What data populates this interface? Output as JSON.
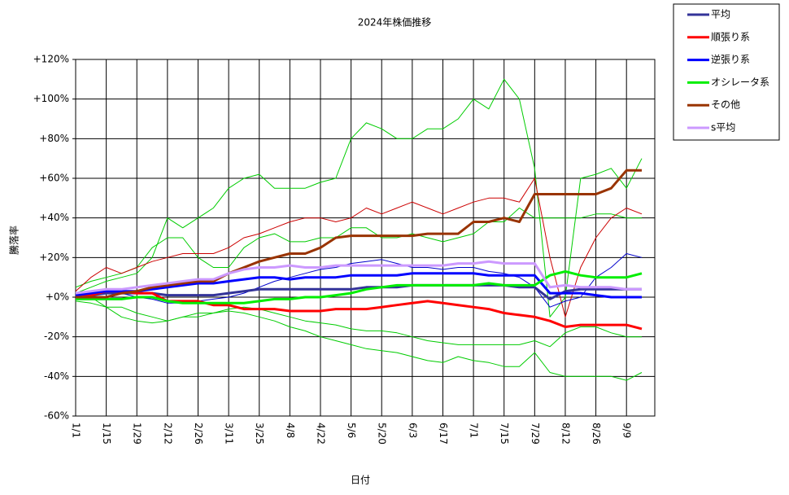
{
  "chart_data": {
    "type": "line",
    "title": "2024年株価推移",
    "x_label": "日付",
    "y_label": "騰落率",
    "categories": [
      "1/1",
      null,
      "1/15",
      null,
      "1/29",
      null,
      "2/12",
      null,
      "2/26",
      null,
      "3/11",
      null,
      "3/25",
      null,
      "4/8",
      null,
      "4/22",
      null,
      "5/6",
      null,
      "5/20",
      null,
      "6/3",
      null,
      "6/17",
      null,
      "7/1",
      null,
      "7/15",
      null,
      "7/29",
      null,
      "8/12",
      null,
      "8/26",
      null,
      "9/9",
      null
    ],
    "ylim": [
      -60,
      120
    ],
    "yticks": [
      {
        "value": -60,
        "label": "-60%"
      },
      {
        "value": -40,
        "label": "-40%"
      },
      {
        "value": -20,
        "label": "-20%"
      },
      {
        "value": 0,
        "label": "+0%"
      },
      {
        "value": 20,
        "label": "+20%"
      },
      {
        "value": 40,
        "label": "+40%"
      },
      {
        "value": 60,
        "label": "+60%"
      },
      {
        "value": 80,
        "label": "+80%"
      },
      {
        "value": 100,
        "label": "+100%"
      },
      {
        "value": 120,
        "label": "+120%"
      }
    ],
    "grid": true,
    "legend": "outside-top-right",
    "series": [
      {
        "color": "#00cc00",
        "values": [
          2,
          5,
          8,
          10,
          12,
          20,
          40,
          35,
          40,
          45,
          55,
          60,
          62,
          55,
          55,
          55,
          58,
          60,
          80,
          88,
          85,
          80,
          80,
          85,
          85,
          90,
          100,
          95,
          110,
          100,
          65,
          -10,
          0,
          60,
          62,
          65,
          55,
          70
        ]
      },
      {
        "color": "#00cc00",
        "values": [
          0,
          0,
          -5,
          -10,
          -12,
          -13,
          -12,
          -10,
          -10,
          -8,
          -7,
          -8,
          -10,
          -12,
          -15,
          -17,
          -20,
          -22,
          -24,
          -26,
          -27,
          -28,
          -30,
          -32,
          -33,
          -30,
          -32,
          -33,
          -35,
          -35,
          -28,
          -38,
          -40,
          -40,
          -40,
          -40,
          -42,
          -38
        ]
      },
      {
        "color": "#00cc00",
        "values": [
          5,
          8,
          10,
          12,
          15,
          25,
          30,
          30,
          20,
          15,
          15,
          25,
          30,
          32,
          28,
          28,
          30,
          30,
          35,
          35,
          30,
          30,
          32,
          30,
          28,
          30,
          32,
          38,
          38,
          45,
          40,
          40,
          40,
          40,
          42,
          42,
          40,
          40
        ]
      },
      {
        "color": "#00cc00",
        "values": [
          -2,
          -3,
          -5,
          -5,
          -8,
          -10,
          -12,
          -10,
          -8,
          -8,
          -6,
          -5,
          -6,
          -8,
          -10,
          -12,
          -13,
          -14,
          -16,
          -17,
          -17,
          -18,
          -20,
          -22,
          -23,
          -24,
          -24,
          -24,
          -24,
          -24,
          -22,
          -25,
          -18,
          -15,
          -15,
          -18,
          -20,
          -20
        ]
      },
      {
        "color": "#cc0000",
        "values": [
          3,
          10,
          15,
          12,
          15,
          18,
          20,
          22,
          22,
          22,
          25,
          30,
          32,
          35,
          38,
          40,
          40,
          38,
          40,
          45,
          42,
          45,
          48,
          45,
          42,
          45,
          48,
          50,
          50,
          48,
          60,
          20,
          -10,
          15,
          30,
          40,
          45,
          42
        ]
      },
      {
        "color": "#0000cc",
        "values": [
          0,
          2,
          3,
          2,
          0,
          -1,
          -3,
          -3,
          -2,
          -1,
          0,
          2,
          5,
          8,
          10,
          12,
          14,
          15,
          17,
          18,
          19,
          17,
          15,
          15,
          14,
          15,
          15,
          13,
          12,
          10,
          5,
          -5,
          -2,
          0,
          10,
          15,
          22,
          20
        ]
      },
      {
        "name": "平均",
        "color": "#333399",
        "values": [
          0,
          1,
          2,
          2,
          2,
          2,
          1,
          1,
          1,
          1,
          2,
          3,
          4,
          4,
          4,
          4,
          4,
          4,
          4,
          5,
          5,
          5,
          6,
          6,
          6,
          6,
          6,
          6,
          6,
          5,
          5,
          -1,
          3,
          4,
          4,
          4,
          4,
          4
        ]
      },
      {
        "name": "順張り系",
        "color": "#ff0000",
        "values": [
          0,
          1,
          3,
          3,
          2,
          2,
          -2,
          -2,
          -2,
          -4,
          -4,
          -6,
          -6,
          -6,
          -7,
          -7,
          -7,
          -6,
          -6,
          -6,
          -5,
          -4,
          -3,
          -2,
          -3,
          -4,
          -5,
          -6,
          -8,
          -9,
          -10,
          -12,
          -15,
          -14,
          -14,
          -14,
          -14,
          -16
        ]
      },
      {
        "name": "逆張り系",
        "color": "#0000ff",
        "values": [
          1,
          2,
          3,
          3,
          3,
          4,
          5,
          6,
          7,
          7,
          8,
          9,
          10,
          10,
          9,
          10,
          10,
          10,
          11,
          11,
          11,
          11,
          12,
          12,
          12,
          12,
          12,
          11,
          11,
          11,
          11,
          2,
          2,
          2,
          1,
          0,
          0,
          0
        ]
      },
      {
        "name": "オシレータ系",
        "color": "#00ee00",
        "values": [
          -1,
          -1,
          -1,
          -1,
          0,
          0,
          -2,
          -3,
          -3,
          -3,
          -3,
          -3,
          -2,
          -1,
          -1,
          0,
          0,
          1,
          2,
          4,
          5,
          6,
          6,
          6,
          6,
          6,
          6,
          7,
          6,
          6,
          6,
          11,
          13,
          11,
          10,
          10,
          10,
          12
        ]
      },
      {
        "name": "その他",
        "color": "#993300",
        "values": [
          0,
          0,
          0,
          2,
          3,
          5,
          6,
          7,
          8,
          8,
          12,
          15,
          18,
          20,
          22,
          22,
          25,
          30,
          31,
          31,
          31,
          31,
          31,
          32,
          32,
          32,
          38,
          38,
          40,
          38,
          52,
          52,
          52,
          52,
          52,
          55,
          64,
          64
        ]
      },
      {
        "name": "s平均",
        "color": "#cc99ff",
        "values": [
          2,
          3,
          4,
          4,
          5,
          6,
          7,
          8,
          9,
          9,
          12,
          14,
          15,
          15,
          16,
          15,
          15,
          16,
          16,
          16,
          16,
          16,
          16,
          16,
          16,
          17,
          17,
          18,
          17,
          17,
          17,
          5,
          6,
          5,
          5,
          5,
          4,
          4
        ]
      }
    ]
  }
}
